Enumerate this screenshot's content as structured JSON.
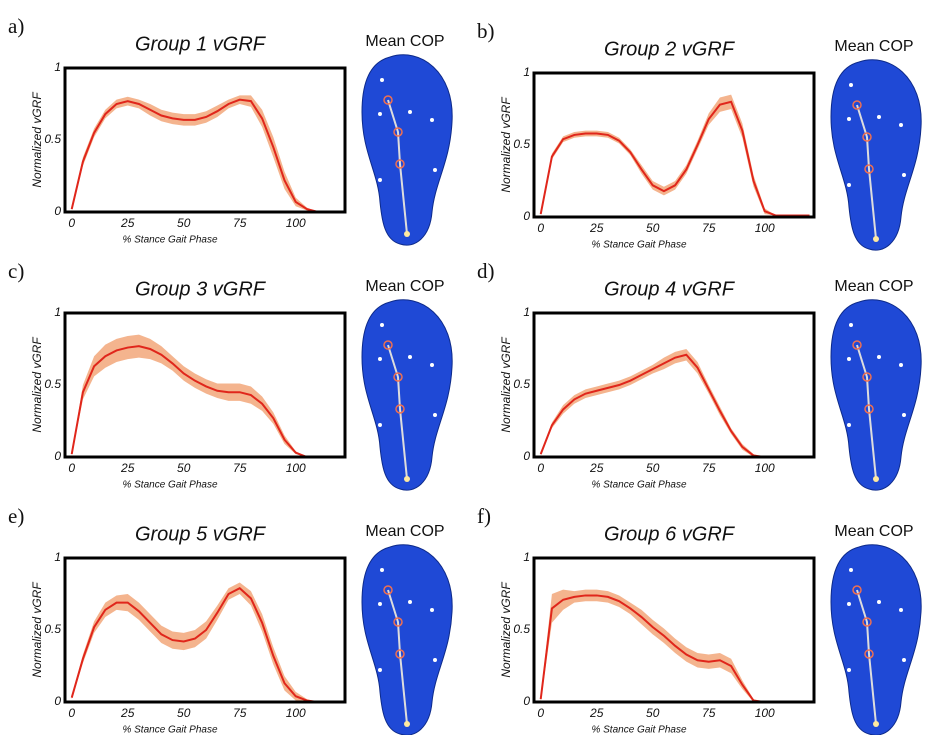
{
  "chart_data": [
    {
      "type": "line",
      "label": "a)",
      "title": "Group 1 vGRF",
      "cop_label": "Mean COP",
      "xlabel": "% Stance Gait Phase",
      "ylabel": "Normalized vGRF",
      "color": "#e0261b",
      "band_color": "#f2a77a",
      "x": [
        0,
        5,
        10,
        15,
        20,
        25,
        30,
        35,
        40,
        45,
        50,
        55,
        60,
        65,
        70,
        75,
        80,
        85,
        90,
        95,
        100,
        105,
        110,
        115,
        120
      ],
      "values": [
        0.02,
        0.35,
        0.55,
        0.68,
        0.75,
        0.77,
        0.75,
        0.71,
        0.67,
        0.65,
        0.64,
        0.64,
        0.66,
        0.7,
        0.75,
        0.78,
        0.77,
        0.65,
        0.45,
        0.22,
        0.07,
        0.02,
        0,
        0,
        0
      ],
      "spread": [
        0.01,
        0.03,
        0.03,
        0.03,
        0.03,
        0.03,
        0.03,
        0.04,
        0.04,
        0.04,
        0.04,
        0.04,
        0.04,
        0.04,
        0.03,
        0.03,
        0.04,
        0.06,
        0.07,
        0.06,
        0.03,
        0.01,
        0,
        0,
        0
      ],
      "xlim": [
        -3,
        122
      ],
      "ylim": [
        0,
        1
      ],
      "xticks": [
        0,
        25,
        50,
        75,
        100
      ],
      "yticks": [
        0,
        0.5,
        1
      ]
    },
    {
      "type": "line",
      "label": "b)",
      "title": "Group 2 vGRF",
      "cop_label": "Mean COP",
      "xlabel": "% Stance Gait Phase",
      "ylabel": "Normalized vGRF",
      "color": "#e0261b",
      "band_color": "#f2a77a",
      "x": [
        0,
        5,
        10,
        15,
        20,
        25,
        30,
        35,
        40,
        45,
        50,
        55,
        60,
        65,
        70,
        75,
        80,
        85,
        90,
        95,
        100,
        105,
        110,
        115,
        120
      ],
      "values": [
        0.02,
        0.42,
        0.54,
        0.57,
        0.58,
        0.58,
        0.57,
        0.53,
        0.45,
        0.33,
        0.22,
        0.18,
        0.22,
        0.33,
        0.5,
        0.68,
        0.78,
        0.8,
        0.6,
        0.25,
        0.04,
        0.01,
        0.01,
        0.01,
        0.01
      ],
      "spread": [
        0.01,
        0.02,
        0.02,
        0.02,
        0.02,
        0.02,
        0.02,
        0.02,
        0.02,
        0.03,
        0.03,
        0.03,
        0.03,
        0.03,
        0.03,
        0.04,
        0.05,
        0.05,
        0.05,
        0.04,
        0.02,
        0,
        0,
        0,
        0
      ],
      "xlim": [
        -3,
        122
      ],
      "ylim": [
        0,
        1
      ],
      "xticks": [
        0,
        25,
        50,
        75,
        100
      ],
      "yticks": [
        0,
        0.5,
        1
      ]
    },
    {
      "type": "line",
      "label": "c)",
      "title": "Group 3 vGRF",
      "cop_label": "Mean COP",
      "xlabel": "% Stance Gait Phase",
      "ylabel": "Normalized vGRF",
      "color": "#e0261b",
      "band_color": "#f2a77a",
      "x": [
        0,
        5,
        10,
        15,
        20,
        25,
        30,
        35,
        40,
        45,
        50,
        55,
        60,
        65,
        70,
        75,
        80,
        85,
        90,
        95,
        100,
        105,
        110,
        115,
        120
      ],
      "values": [
        0.02,
        0.45,
        0.63,
        0.7,
        0.74,
        0.76,
        0.77,
        0.75,
        0.71,
        0.65,
        0.58,
        0.53,
        0.49,
        0.46,
        0.45,
        0.45,
        0.43,
        0.37,
        0.27,
        0.12,
        0.03,
        0,
        0,
        0,
        0
      ],
      "spread": [
        0.01,
        0.05,
        0.07,
        0.08,
        0.08,
        0.08,
        0.08,
        0.07,
        0.06,
        0.05,
        0.05,
        0.05,
        0.05,
        0.05,
        0.06,
        0.06,
        0.06,
        0.05,
        0.04,
        0.03,
        0.01,
        0,
        0,
        0,
        0
      ],
      "xlim": [
        -3,
        122
      ],
      "ylim": [
        0,
        1
      ],
      "xticks": [
        0,
        25,
        50,
        75,
        100
      ],
      "yticks": [
        0,
        0.5,
        1
      ]
    },
    {
      "type": "line",
      "label": "d)",
      "title": "Group 4 vGRF",
      "cop_label": "Mean COP",
      "xlabel": "% Stance Gait Phase",
      "ylabel": "Normalized vGRF",
      "color": "#e0261b",
      "band_color": "#f2a77a",
      "x": [
        0,
        5,
        10,
        15,
        20,
        25,
        30,
        35,
        40,
        45,
        50,
        55,
        60,
        65,
        70,
        75,
        80,
        85,
        90,
        95,
        100,
        105,
        110,
        115,
        120
      ],
      "values": [
        0.02,
        0.22,
        0.33,
        0.4,
        0.44,
        0.46,
        0.48,
        0.5,
        0.53,
        0.57,
        0.61,
        0.65,
        0.69,
        0.71,
        0.62,
        0.47,
        0.32,
        0.18,
        0.07,
        0.01,
        0,
        0,
        0,
        0,
        0
      ],
      "spread": [
        0.01,
        0.02,
        0.03,
        0.03,
        0.03,
        0.03,
        0.03,
        0.03,
        0.03,
        0.03,
        0.03,
        0.04,
        0.04,
        0.04,
        0.04,
        0.03,
        0.03,
        0.02,
        0.02,
        0.01,
        0,
        0,
        0,
        0,
        0
      ],
      "xlim": [
        -3,
        122
      ],
      "ylim": [
        0,
        1
      ],
      "xticks": [
        0,
        25,
        50,
        75,
        100
      ],
      "yticks": [
        0,
        0.5,
        1
      ]
    },
    {
      "type": "line",
      "label": "e)",
      "title": "Group 5 vGRF",
      "cop_label": "Mean COP",
      "xlabel": "% Stance Gait Phase",
      "ylabel": "Normalized vGRF",
      "color": "#e0261b",
      "band_color": "#f2a77a",
      "x": [
        0,
        5,
        10,
        15,
        20,
        25,
        30,
        35,
        40,
        45,
        50,
        55,
        60,
        65,
        70,
        75,
        80,
        85,
        90,
        95,
        100,
        105,
        110,
        115,
        120
      ],
      "values": [
        0.03,
        0.3,
        0.52,
        0.64,
        0.69,
        0.69,
        0.63,
        0.55,
        0.47,
        0.43,
        0.42,
        0.44,
        0.5,
        0.62,
        0.75,
        0.79,
        0.72,
        0.55,
        0.32,
        0.13,
        0.04,
        0.01,
        0,
        0,
        0
      ],
      "spread": [
        0.01,
        0.03,
        0.04,
        0.05,
        0.05,
        0.06,
        0.06,
        0.06,
        0.06,
        0.06,
        0.06,
        0.06,
        0.06,
        0.05,
        0.04,
        0.04,
        0.05,
        0.06,
        0.06,
        0.05,
        0.03,
        0.01,
        0,
        0,
        0
      ],
      "xlim": [
        -3,
        122
      ],
      "ylim": [
        0,
        1
      ],
      "xticks": [
        0,
        25,
        50,
        75,
        100
      ],
      "yticks": [
        0,
        0.5,
        1
      ]
    },
    {
      "type": "line",
      "label": "f)",
      "title": "Group 6 vGRF",
      "cop_label": "Mean COP",
      "xlabel": "% Stance Gait Phase",
      "ylabel": "Normalized vGRF",
      "color": "#e0261b",
      "band_color": "#f2a77a",
      "x": [
        0,
        5,
        10,
        15,
        20,
        25,
        30,
        35,
        40,
        45,
        50,
        55,
        60,
        65,
        70,
        75,
        80,
        85,
        90,
        95,
        100,
        105,
        110,
        115,
        120
      ],
      "values": [
        0.02,
        0.65,
        0.71,
        0.73,
        0.74,
        0.74,
        0.73,
        0.7,
        0.65,
        0.59,
        0.52,
        0.46,
        0.39,
        0.33,
        0.29,
        0.28,
        0.29,
        0.25,
        0.12,
        0.01,
        0,
        0,
        0,
        0,
        0
      ],
      "spread": [
        0.02,
        0.1,
        0.07,
        0.04,
        0.04,
        0.04,
        0.04,
        0.04,
        0.04,
        0.05,
        0.05,
        0.05,
        0.05,
        0.05,
        0.05,
        0.05,
        0.05,
        0.05,
        0.03,
        0.01,
        0,
        0,
        0,
        0,
        0
      ],
      "xlim": [
        -3,
        122
      ],
      "ylim": [
        0,
        1
      ],
      "xticks": [
        0,
        25,
        50,
        75,
        100
      ],
      "yticks": [
        0,
        0.5,
        1
      ]
    }
  ]
}
